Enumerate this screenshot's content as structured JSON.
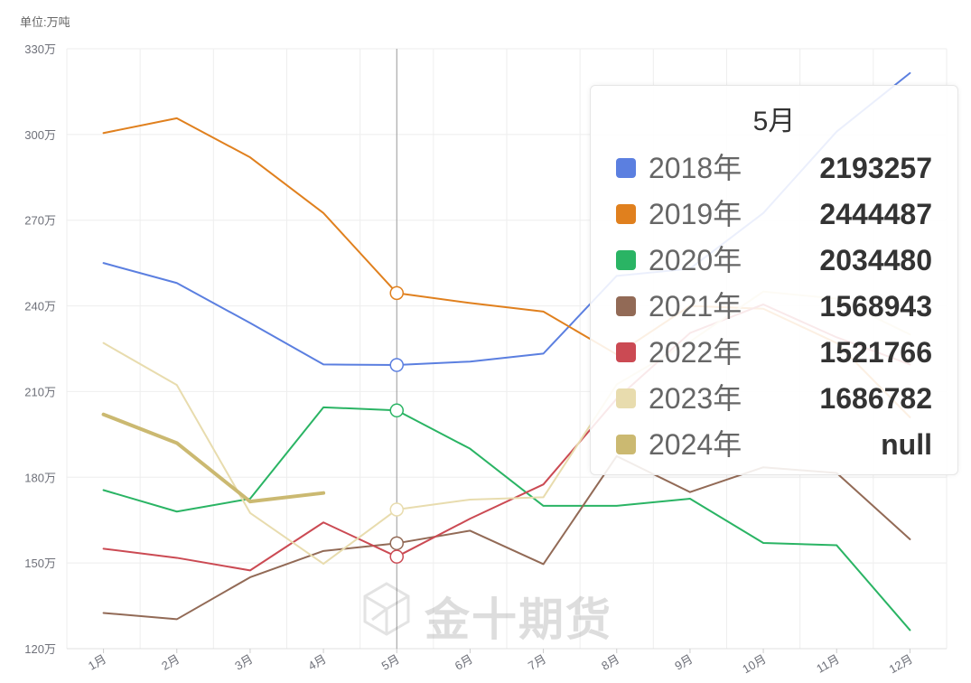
{
  "chart_data": {
    "type": "line",
    "unit_label": "单位:万吨",
    "categories": [
      "1月",
      "2月",
      "3月",
      "4月",
      "5月",
      "6月",
      "7月",
      "8月",
      "9月",
      "10月",
      "11月",
      "12月"
    ],
    "yticks": [
      "120万",
      "150万",
      "180万",
      "210万",
      "240万",
      "270万",
      "300万",
      "330万"
    ],
    "ylim": [
      120,
      330
    ],
    "grid": true,
    "crosshair_category": "5月",
    "series": [
      {
        "name": "2018年",
        "color": "#5b7fe0",
        "values": [
          255,
          248,
          234,
          219.5,
          219.3,
          220.5,
          223.3,
          250.5,
          253,
          272.5,
          301,
          321.5
        ]
      },
      {
        "name": "2019年",
        "color": "#e0801e",
        "values": [
          300.5,
          305.7,
          292,
          272.5,
          244.5,
          241,
          238,
          223,
          240,
          239,
          227,
          201
        ]
      },
      {
        "name": "2020年",
        "color": "#2ab464",
        "values": [
          175.5,
          168,
          172.5,
          204.5,
          203.4,
          190,
          170,
          170,
          172.5,
          157,
          156.2,
          126.5
        ]
      },
      {
        "name": "2021年",
        "color": "#926a56",
        "values": [
          132.5,
          130.3,
          145,
          154.2,
          156.9,
          161.3,
          149.6,
          187.4,
          174.8,
          183.5,
          181.5,
          158.3
        ]
      },
      {
        "name": "2022年",
        "color": "#cb4a53",
        "values": [
          155,
          151.8,
          147.4,
          164.2,
          152.2,
          165.5,
          177.5,
          207.5,
          230.5,
          240.5,
          229,
          219.5
        ]
      },
      {
        "name": "2023年",
        "color": "#e8dcae",
        "values": [
          227,
          212.3,
          167.5,
          149.7,
          168.7,
          172.2,
          173,
          212.5,
          227.5,
          245,
          242.5,
          230
        ]
      },
      {
        "name": "2024年",
        "color": "#cbb971",
        "values": [
          202,
          192,
          171.5,
          174.5,
          null,
          null,
          null,
          null,
          null,
          null,
          null,
          null
        ]
      }
    ],
    "tooltip": {
      "title": "5月",
      "rows": [
        {
          "name": "2018年",
          "value": "2193257",
          "color": "#5b7fe0"
        },
        {
          "name": "2019年",
          "value": "2444487",
          "color": "#e0801e"
        },
        {
          "name": "2020年",
          "value": "2034480",
          "color": "#2ab464"
        },
        {
          "name": "2021年",
          "value": "1568943",
          "color": "#926a56"
        },
        {
          "name": "2022年",
          "value": "1521766",
          "color": "#cb4a53"
        },
        {
          "name": "2023年",
          "value": "1686782",
          "color": "#e8dcae"
        },
        {
          "name": "2024年",
          "value": "null",
          "color": "#cbb971"
        }
      ]
    }
  },
  "watermark": {
    "text": "金十期货"
  }
}
